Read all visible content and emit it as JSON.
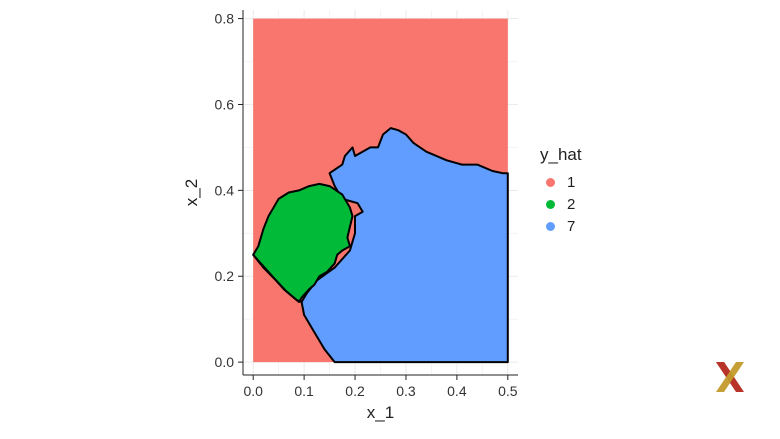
{
  "chart_data": {
    "type": "heatmap",
    "title": "",
    "xlabel": "x_1",
    "ylabel": "x_2",
    "xlim": [
      -0.02,
      0.52
    ],
    "ylim": [
      -0.03,
      0.82
    ],
    "xticks": [
      0.0,
      0.1,
      0.2,
      0.3,
      0.4,
      0.5
    ],
    "xtick_labels": [
      "0.0",
      "0.1",
      "0.2",
      "0.3",
      "0.4",
      "0.5"
    ],
    "yticks": [
      0.0,
      0.2,
      0.4,
      0.6,
      0.8
    ],
    "ytick_labels": [
      "0.0",
      "0.2",
      "0.4",
      "0.6",
      "0.8"
    ],
    "grid": true,
    "background_region": {
      "x": [
        0.0,
        0.5
      ],
      "y": [
        0.0,
        0.8
      ],
      "class": "1"
    },
    "legend": {
      "title": "y_hat",
      "placement": "right",
      "entries": [
        {
          "label": "1",
          "color": "#F8766D"
        },
        {
          "label": "2",
          "color": "#00BA38"
        },
        {
          "label": "7",
          "color": "#619CFF"
        }
      ]
    },
    "regions": [
      {
        "class": "7",
        "color": "#619CFF",
        "boundary": [
          [
            0.16,
            0.0
          ],
          [
            0.14,
            0.03
          ],
          [
            0.12,
            0.07
          ],
          [
            0.1,
            0.11
          ],
          [
            0.095,
            0.14
          ],
          [
            0.105,
            0.16
          ],
          [
            0.125,
            0.19
          ],
          [
            0.16,
            0.22
          ],
          [
            0.19,
            0.26
          ],
          [
            0.2,
            0.3
          ],
          [
            0.2,
            0.34
          ],
          [
            0.215,
            0.35
          ],
          [
            0.205,
            0.37
          ],
          [
            0.175,
            0.38
          ],
          [
            0.16,
            0.41
          ],
          [
            0.15,
            0.44
          ],
          [
            0.175,
            0.46
          ],
          [
            0.18,
            0.48
          ],
          [
            0.195,
            0.5
          ],
          [
            0.2,
            0.48
          ],
          [
            0.23,
            0.5
          ],
          [
            0.245,
            0.5
          ],
          [
            0.255,
            0.53
          ],
          [
            0.27,
            0.545
          ],
          [
            0.285,
            0.54
          ],
          [
            0.3,
            0.53
          ],
          [
            0.315,
            0.51
          ],
          [
            0.34,
            0.49
          ],
          [
            0.38,
            0.47
          ],
          [
            0.41,
            0.46
          ],
          [
            0.44,
            0.46
          ],
          [
            0.47,
            0.445
          ],
          [
            0.49,
            0.44
          ],
          [
            0.5,
            0.44
          ],
          [
            0.5,
            0.0
          ]
        ]
      },
      {
        "class": "2",
        "color": "#00BA38",
        "boundary": [
          [
            0.0,
            0.25
          ],
          [
            0.01,
            0.27
          ],
          [
            0.02,
            0.31
          ],
          [
            0.03,
            0.34
          ],
          [
            0.04,
            0.36
          ],
          [
            0.05,
            0.38
          ],
          [
            0.07,
            0.395
          ],
          [
            0.09,
            0.4
          ],
          [
            0.11,
            0.41
          ],
          [
            0.13,
            0.415
          ],
          [
            0.15,
            0.41
          ],
          [
            0.175,
            0.39
          ],
          [
            0.19,
            0.36
          ],
          [
            0.195,
            0.34
          ],
          [
            0.19,
            0.315
          ],
          [
            0.185,
            0.29
          ],
          [
            0.19,
            0.27
          ],
          [
            0.175,
            0.26
          ],
          [
            0.165,
            0.25
          ],
          [
            0.16,
            0.23
          ],
          [
            0.145,
            0.21
          ],
          [
            0.13,
            0.2
          ],
          [
            0.12,
            0.18
          ],
          [
            0.11,
            0.17
          ],
          [
            0.095,
            0.15
          ],
          [
            0.09,
            0.14
          ],
          [
            0.075,
            0.155
          ],
          [
            0.06,
            0.17
          ],
          [
            0.045,
            0.19
          ],
          [
            0.03,
            0.21
          ],
          [
            0.015,
            0.23
          ]
        ]
      }
    ],
    "boundary_lines": [
      [
        [
          0.0,
          0.25
        ],
        [
          0.02,
          0.22
        ],
        [
          0.045,
          0.19
        ],
        [
          0.065,
          0.165
        ],
        [
          0.085,
          0.145
        ],
        [
          0.095,
          0.14
        ]
      ]
    ]
  }
}
